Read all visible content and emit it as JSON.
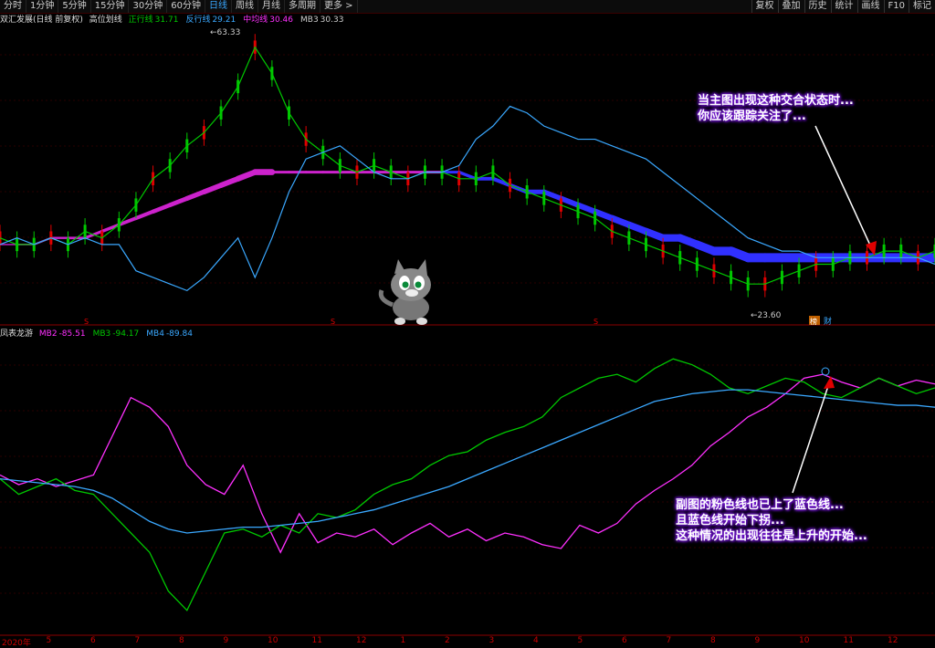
{
  "toolbar": {
    "tabs": [
      "分时",
      "1分钟",
      "5分钟",
      "15分钟",
      "30分钟",
      "60分钟",
      "日线",
      "周线",
      "月线",
      "多周期",
      "更多"
    ],
    "active_tab": "日线",
    "more_arrow": ">",
    "right_buttons": [
      "复权",
      "叠加",
      "历史",
      "统计",
      "画线",
      "F10",
      "标记"
    ]
  },
  "main_info": {
    "stock": "双汇发展(日线 前复权)",
    "indicator": "高位划线",
    "items": [
      {
        "label": "正行线",
        "value": "31.71",
        "color": "#00c800"
      },
      {
        "label": "反行线",
        "value": "29.21",
        "color": "#3aa8ff"
      },
      {
        "label": "中均线",
        "value": "30.46",
        "color": "#ff30ff"
      },
      {
        "label": "MB3",
        "value": "30.33",
        "color": "#cccccc"
      }
    ]
  },
  "sub_info": {
    "indicator": "凤表龙游",
    "items": [
      {
        "label": "MB2",
        "value": "-85.51",
        "color": "#ff30ff"
      },
      {
        "label": "MB3",
        "value": "-94.17",
        "color": "#00c800"
      },
      {
        "label": "MB4",
        "value": "-89.84",
        "color": "#3aa8ff"
      }
    ]
  },
  "price_marks": {
    "high": "63.33",
    "low": "23.60"
  },
  "corner_tags": {
    "bang": "榜",
    "cai": "财",
    "s": "S"
  },
  "annotations": {
    "main": [
      "当主图出现这种交合状态时...",
      "你应该跟踪关注了..."
    ],
    "sub": [
      "副图的粉色线也已上了蓝色线...",
      "且蓝色线开始下拐...",
      "这种情况的出现往往是上升的开始..."
    ]
  },
  "x_axis": [
    "2020年",
    "5",
    "6",
    "7",
    "8",
    "9",
    "10",
    "11",
    "12",
    "1",
    "2",
    "3",
    "4",
    "5",
    "6",
    "7",
    "8",
    "9",
    "10",
    "11",
    "12"
  ],
  "colors": {
    "green": "#00c800",
    "blue": "#3aa8ff",
    "magenta": "#ff30ff",
    "band_magenta": "#cc22cc",
    "band_blue": "#3030ff",
    "red": "#e00000",
    "grid": "#2a0000"
  },
  "chart_data": [
    {
      "type": "line",
      "name": "main",
      "series": [
        {
          "name": "正行线",
          "color": "#00c800",
          "values": [
            33,
            32,
            32,
            33,
            32,
            34,
            33,
            35,
            38,
            42,
            44,
            47,
            49,
            52,
            56,
            62,
            58,
            52,
            48,
            46,
            44,
            43,
            44,
            43,
            42,
            43,
            43,
            42,
            42,
            43,
            41,
            40,
            39,
            38,
            37,
            36,
            34,
            33,
            32,
            31,
            30,
            29,
            28,
            27,
            26,
            26,
            27,
            28,
            29,
            29,
            30,
            30,
            31,
            31,
            30,
            31
          ]
        },
        {
          "name": "反行线",
          "color": "#3aa8ff",
          "values": [
            32,
            33,
            32,
            33,
            32,
            33,
            32,
            32,
            28,
            27,
            26,
            25,
            27,
            30,
            33,
            27,
            33,
            40,
            45,
            46,
            47,
            45,
            43,
            42,
            42,
            43,
            43,
            44,
            48,
            50,
            53,
            52,
            50,
            49,
            48,
            48,
            47,
            46,
            45,
            43,
            41,
            39,
            37,
            35,
            33,
            32,
            31,
            31,
            30,
            30,
            30,
            30,
            30,
            30,
            30,
            29
          ]
        },
        {
          "name": "中均线",
          "color": "#ff30ff",
          "values": [
            32,
            32,
            32,
            33,
            33,
            33,
            34,
            35,
            36,
            37,
            38,
            39,
            40,
            41,
            42,
            43,
            43,
            43,
            43,
            43,
            43,
            43,
            43,
            43,
            43,
            43,
            43,
            43,
            42,
            42,
            41,
            40,
            40,
            39,
            38,
            37,
            36,
            35,
            34,
            33,
            33,
            32,
            31,
            31,
            30,
            30,
            30,
            30,
            30,
            30,
            30,
            30,
            30,
            30,
            30,
            30
          ]
        }
      ]
    },
    {
      "type": "line",
      "name": "sub",
      "series": [
        {
          "name": "MB2",
          "color": "#ff30ff",
          "values": [
            -60,
            -65,
            -62,
            -66,
            -63,
            -60,
            -40,
            -20,
            -25,
            -35,
            -55,
            -65,
            -70,
            -55,
            -80,
            -100,
            -80,
            -95,
            -90,
            -92,
            -88,
            -96,
            -90,
            -85,
            -92,
            -88,
            -94,
            -90,
            -92,
            -96,
            -98,
            -86,
            -90,
            -85,
            -75,
            -68,
            -62,
            -55,
            -45,
            -38,
            -30,
            -25,
            -18,
            -10,
            -8,
            -12,
            -15,
            -10,
            -14,
            -11,
            -13
          ]
        },
        {
          "name": "MB3",
          "color": "#00c800",
          "values": [
            -62,
            -70,
            -66,
            -62,
            -68,
            -70,
            -80,
            -90,
            -100,
            -120,
            -130,
            -110,
            -90,
            -88,
            -92,
            -86,
            -90,
            -80,
            -82,
            -78,
            -70,
            -65,
            -62,
            -55,
            -50,
            -48,
            -42,
            -38,
            -35,
            -30,
            -20,
            -15,
            -10,
            -8,
            -12,
            -5,
            0,
            -3,
            -8,
            -15,
            -18,
            -14,
            -10,
            -12,
            -18,
            -20,
            -15,
            -10,
            -14,
            -18,
            -15
          ]
        },
        {
          "name": "MB4",
          "color": "#3aa8ff",
          "values": [
            -62,
            -63,
            -64,
            -65,
            -66,
            -68,
            -72,
            -78,
            -84,
            -88,
            -90,
            -89,
            -88,
            -87,
            -87,
            -86,
            -85,
            -84,
            -82,
            -80,
            -78,
            -75,
            -72,
            -69,
            -66,
            -62,
            -58,
            -54,
            -50,
            -46,
            -42,
            -38,
            -34,
            -30,
            -26,
            -22,
            -20,
            -18,
            -17,
            -16,
            -16,
            -17,
            -18,
            -19,
            -20,
            -21,
            -22,
            -23,
            -24,
            -24,
            -25
          ]
        }
      ]
    }
  ]
}
